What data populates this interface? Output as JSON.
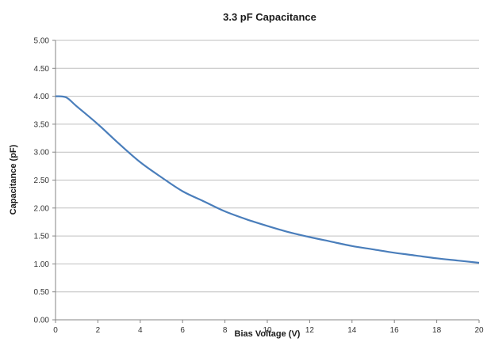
{
  "chart_data": {
    "type": "line",
    "title": "3.3 pF Capacitance",
    "xlabel": "Bias Voltage (V)",
    "ylabel": "Capacitance (pF)",
    "xlim": [
      0,
      20
    ],
    "ylim": [
      0,
      5
    ],
    "x_ticks": [
      "0",
      "2",
      "4",
      "6",
      "8",
      "10",
      "12",
      "14",
      "16",
      "18",
      "20"
    ],
    "y_ticks": [
      "0.00",
      "0.50",
      "1.00",
      "1.50",
      "2.00",
      "2.50",
      "3.00",
      "3.50",
      "4.00",
      "4.50",
      "5.00"
    ],
    "grid": "horizontal",
    "legend": "none",
    "series": [
      {
        "color": "#4a7ebb",
        "x": [
          0,
          0.5,
          1,
          2,
          3,
          4,
          5,
          6,
          7,
          8,
          9,
          10,
          11,
          12,
          13,
          14,
          15,
          16,
          17,
          18,
          19,
          20
        ],
        "y": [
          4.0,
          3.98,
          3.82,
          3.5,
          3.15,
          2.82,
          2.55,
          2.3,
          2.12,
          1.94,
          1.8,
          1.68,
          1.57,
          1.48,
          1.4,
          1.32,
          1.26,
          1.2,
          1.15,
          1.1,
          1.06,
          1.02
        ]
      }
    ]
  }
}
